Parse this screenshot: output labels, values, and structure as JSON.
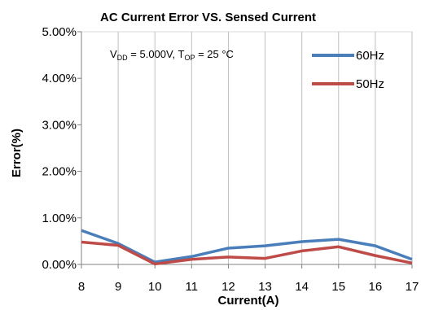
{
  "chart_data": {
    "type": "line",
    "title": "AC Current Error VS. Sensed Current",
    "xlabel": "Current(A)",
    "ylabel": "Error(%)",
    "x": [
      8,
      9,
      10,
      11,
      12,
      13,
      14,
      15,
      16,
      17
    ],
    "xlim": [
      8,
      17
    ],
    "ylim": [
      0,
      5
    ],
    "yticks": [
      0,
      1,
      2,
      3,
      4,
      5
    ],
    "ytick_labels": [
      "0.00%",
      "1.00%",
      "2.00%",
      "3.00%",
      "4.00%",
      "5.00%"
    ],
    "xtick_labels": [
      "8",
      "9",
      "10",
      "11",
      "12",
      "13",
      "14",
      "15",
      "16",
      "17"
    ],
    "grid": "vertical",
    "legend_position": "top-right",
    "annotation": {
      "v": "V",
      "v_sub": "DD",
      "v_rest": " = 5.000V, T",
      "t_sub": "OP",
      "t_rest": " = 25 °C"
    },
    "series": [
      {
        "name": "60Hz",
        "color": "#4a7ebb",
        "values": [
          0.73,
          0.45,
          0.05,
          0.17,
          0.35,
          0.4,
          0.49,
          0.54,
          0.4,
          0.11
        ]
      },
      {
        "name": "50Hz",
        "color": "#be4b48",
        "values": [
          0.48,
          0.41,
          0.01,
          0.11,
          0.16,
          0.13,
          0.29,
          0.38,
          0.19,
          0.03
        ]
      }
    ]
  }
}
